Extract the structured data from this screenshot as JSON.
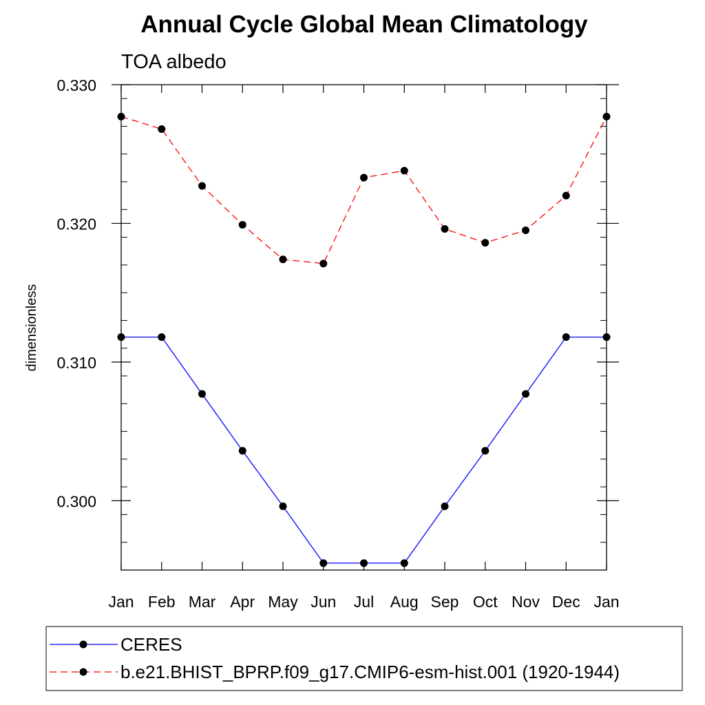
{
  "chart_data": {
    "type": "line",
    "title": "Annual Cycle Global Mean Climatology",
    "subtitle": "TOA albedo",
    "xlabel": "",
    "ylabel": "dimensionless",
    "categories": [
      "Jan",
      "Feb",
      "Mar",
      "Apr",
      "May",
      "Jun",
      "Jul",
      "Aug",
      "Sep",
      "Oct",
      "Nov",
      "Dec",
      "Jan"
    ],
    "ylim": [
      0.295,
      0.33
    ],
    "yticks": [
      0.3,
      0.31,
      0.32,
      0.33
    ],
    "ytick_labels": [
      "0.300",
      "0.310",
      "0.320",
      "0.330"
    ],
    "yminor_step": 0.002,
    "grid": false,
    "legend_placement": "bottom",
    "series": [
      {
        "name": "CERES",
        "color": "#0000ff",
        "line_style": "solid",
        "marker": "filled-circle",
        "values": [
          0.3118,
          0.3118,
          0.3077,
          0.3036,
          0.2996,
          0.2955,
          0.2955,
          0.2955,
          0.2996,
          0.3036,
          0.3077,
          0.3118,
          0.3118
        ]
      },
      {
        "name": "b.e21.BHIST_BPRP.f09_g17.CMIP6-esm-hist.001 (1920-1944)",
        "color": "#ff0000",
        "line_style": "dashed",
        "marker": "filled-circle",
        "values": [
          0.3277,
          0.3268,
          0.3227,
          0.3199,
          0.3174,
          0.3171,
          0.3233,
          0.3238,
          0.3196,
          0.3186,
          0.3195,
          0.322,
          0.3277
        ]
      }
    ]
  }
}
